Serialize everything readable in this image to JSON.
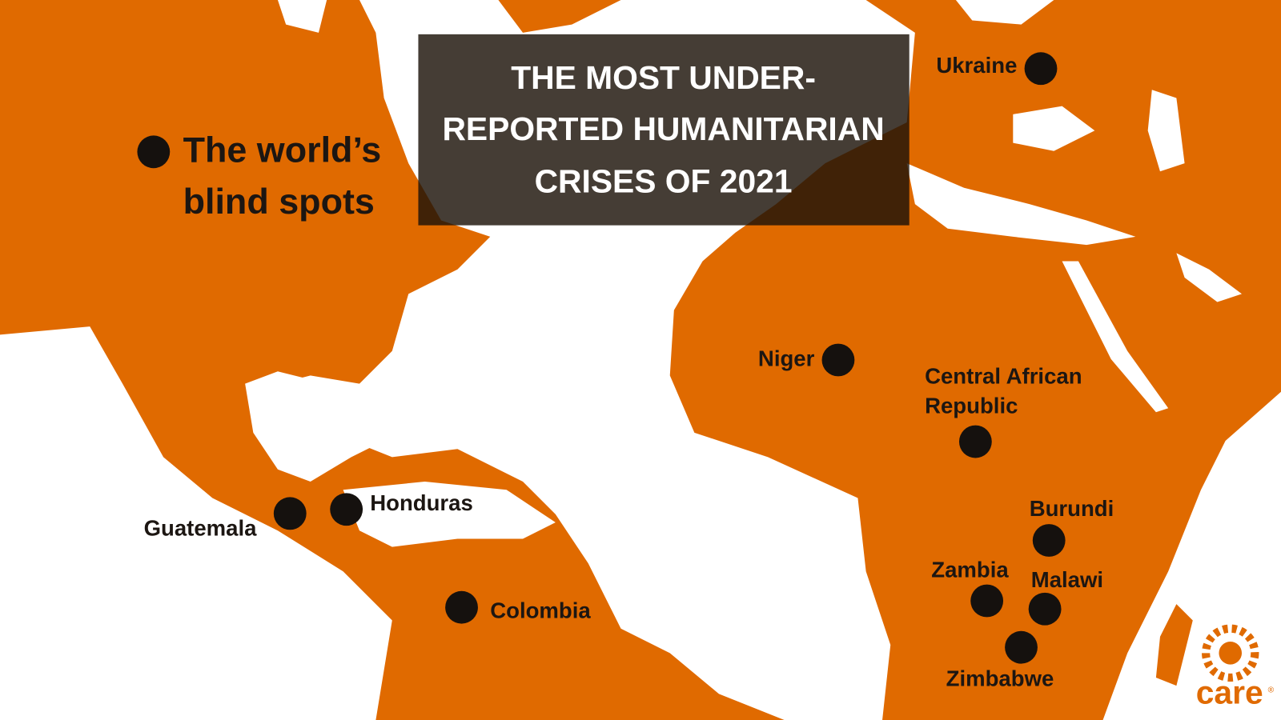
{
  "header": {
    "title_lines": [
      "THE MOST UNDER-",
      "REPORTED HUMANITARIAN",
      "CRISES OF 2021"
    ]
  },
  "legend": {
    "label_lines": [
      "The world’s",
      "blind spots"
    ]
  },
  "markers": [
    {
      "label_lines": [
        "Ukraine"
      ]
    },
    {
      "label_lines": [
        "Niger"
      ]
    },
    {
      "label_lines": [
        "Central African",
        "Republic"
      ]
    },
    {
      "label_lines": [
        "Burundi"
      ]
    },
    {
      "label_lines": [
        "Zambia"
      ]
    },
    {
      "label_lines": [
        "Malawi"
      ]
    },
    {
      "label_lines": [
        "Zimbabwe"
      ]
    },
    {
      "label_lines": [
        "Honduras"
      ]
    },
    {
      "label_lines": [
        "Guatemala"
      ]
    },
    {
      "label_lines": [
        "Colombia"
      ]
    }
  ],
  "logo": {
    "text": "care",
    "mark": "®"
  }
}
